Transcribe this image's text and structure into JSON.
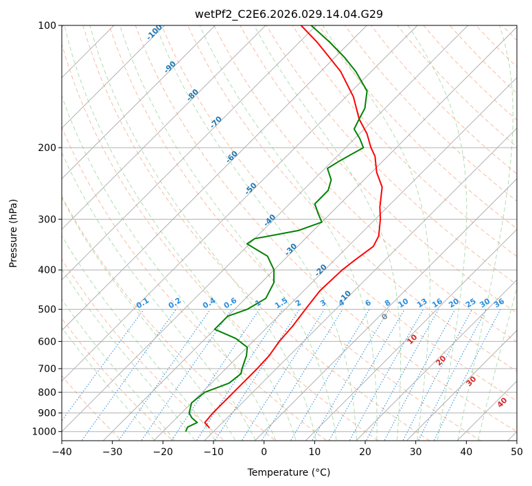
{
  "chart_data": {
    "type": "skew-t",
    "title": "wetPf2_C2E6.2026.029.14.04.G29",
    "xlabel": "Temperature (°C)",
    "ylabel": "Pressure (hPa)",
    "xlim": [
      -40,
      50
    ],
    "ylim_hpa": [
      1050,
      100
    ],
    "xticks": [
      -40,
      -30,
      -20,
      -10,
      0,
      10,
      20,
      30,
      40,
      50
    ],
    "yticks": [
      100,
      200,
      300,
      400,
      500,
      600,
      700,
      800,
      900,
      1000
    ],
    "grid": true,
    "series": [
      {
        "name": "",
        "kind": "temperature",
        "color": "#ff0000",
        "points": [
          {
            "p": 980,
            "t": -11.5
          },
          {
            "p": 950,
            "t": -13.5
          },
          {
            "p": 900,
            "t": -13.8
          },
          {
            "p": 850,
            "t": -13.8
          },
          {
            "p": 800,
            "t": -13.8
          },
          {
            "p": 750,
            "t": -13.8
          },
          {
            "p": 700,
            "t": -13.8
          },
          {
            "p": 650,
            "t": -14.0
          },
          {
            "p": 600,
            "t": -14.8
          },
          {
            "p": 550,
            "t": -15.2
          },
          {
            "p": 500,
            "t": -16.0
          },
          {
            "p": 450,
            "t": -16.8
          },
          {
            "p": 400,
            "t": -16.5
          },
          {
            "p": 380,
            "t": -16.0
          },
          {
            "p": 350,
            "t": -15.0
          },
          {
            "p": 330,
            "t": -16.0
          },
          {
            "p": 300,
            "t": -19.0
          },
          {
            "p": 280,
            "t": -21.5
          },
          {
            "p": 250,
            "t": -25.0
          },
          {
            "p": 230,
            "t": -29.0
          },
          {
            "p": 210,
            "t": -32.5
          },
          {
            "p": 200,
            "t": -35.0
          },
          {
            "p": 185,
            "t": -38.5
          },
          {
            "p": 170,
            "t": -43.0
          },
          {
            "p": 150,
            "t": -48.5
          },
          {
            "p": 130,
            "t": -56.0
          },
          {
            "p": 120,
            "t": -61.0
          },
          {
            "p": 110,
            "t": -66.5
          },
          {
            "p": 100,
            "t": -73.0
          }
        ]
      },
      {
        "name": "",
        "kind": "dewpoint",
        "color": "#008000",
        "points": [
          {
            "p": 1000,
            "t": -15.5
          },
          {
            "p": 975,
            "t": -16.0
          },
          {
            "p": 950,
            "t": -15.0
          },
          {
            "p": 925,
            "t": -17.0
          },
          {
            "p": 900,
            "t": -18.5
          },
          {
            "p": 850,
            "t": -20.0
          },
          {
            "p": 800,
            "t": -19.5
          },
          {
            "p": 760,
            "t": -16.5
          },
          {
            "p": 720,
            "t": -16.0
          },
          {
            "p": 700,
            "t": -16.8
          },
          {
            "p": 650,
            "t": -18.5
          },
          {
            "p": 620,
            "t": -20.0
          },
          {
            "p": 590,
            "t": -24.0
          },
          {
            "p": 560,
            "t": -30.0
          },
          {
            "p": 520,
            "t": -30.0
          },
          {
            "p": 500,
            "t": -27.5
          },
          {
            "p": 470,
            "t": -26.0
          },
          {
            "p": 430,
            "t": -27.5
          },
          {
            "p": 400,
            "t": -30.0
          },
          {
            "p": 370,
            "t": -34.0
          },
          {
            "p": 345,
            "t": -40.5
          },
          {
            "p": 335,
            "t": -40.0
          },
          {
            "p": 320,
            "t": -33.0
          },
          {
            "p": 305,
            "t": -30.0
          },
          {
            "p": 290,
            "t": -32.5
          },
          {
            "p": 275,
            "t": -35.0
          },
          {
            "p": 255,
            "t": -35.0
          },
          {
            "p": 240,
            "t": -36.5
          },
          {
            "p": 225,
            "t": -39.5
          },
          {
            "p": 215,
            "t": -38.5
          },
          {
            "p": 200,
            "t": -36.5
          },
          {
            "p": 190,
            "t": -39.0
          },
          {
            "p": 180,
            "t": -42.0
          },
          {
            "p": 170,
            "t": -43.0
          },
          {
            "p": 160,
            "t": -44.0
          },
          {
            "p": 145,
            "t": -47.0
          },
          {
            "p": 130,
            "t": -53.0
          },
          {
            "p": 120,
            "t": -58.0
          },
          {
            "p": 110,
            "t": -64.0
          },
          {
            "p": 100,
            "t": -71.0
          }
        ]
      }
    ],
    "isotherm_labels": [
      "-100",
      "-90",
      "-80",
      "-70",
      "-60",
      "-50",
      "-40",
      "-30",
      "-20",
      "-10"
    ],
    "mixing_ratio_labels": [
      "0.1",
      "0.2",
      "0.4",
      "0.6",
      "1",
      "1.5",
      "2",
      "3",
      "4",
      "6",
      "8",
      "10",
      "13",
      "16",
      "20",
      "25",
      "30",
      "36"
    ],
    "moist_adiabat_labels": [
      "0",
      "10",
      "20",
      "30",
      "40"
    ]
  }
}
